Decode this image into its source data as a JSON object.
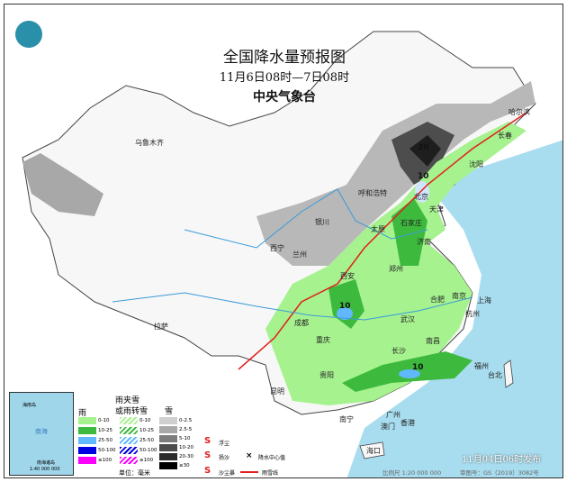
{
  "title": "全国降水量预报图",
  "period": "11月6日08时—7日08时",
  "issuer": "中央气象台",
  "issue_time": "11月04日06时发布",
  "scale": "比例尺 1:20 000 000",
  "map_number": "审图号：GS（2019）3082号",
  "inset": {
    "label": "南海诸岛",
    "scale": "1:40 000 000",
    "sea": "南海",
    "island": "海南岛"
  },
  "cities": [
    "乌鲁木齐",
    "哈尔滨",
    "长春",
    "沈阳",
    "呼和浩特",
    "北京",
    "天津",
    "石家庄",
    "太原",
    "银川",
    "西宁",
    "兰州",
    "济南",
    "郑州",
    "西安",
    "南京",
    "上海",
    "合肥",
    "杭州",
    "武汉",
    "成都",
    "重庆",
    "长沙",
    "南昌",
    "福州",
    "台北",
    "贵阳",
    "昆明",
    "拉萨",
    "南宁",
    "广州",
    "香港",
    "澳门",
    "海口"
  ],
  "centers": [
    "20",
    "10",
    "10",
    "10"
  ],
  "legend": {
    "rain": {
      "title": "雨",
      "items": [
        {
          "label": "0-10",
          "color": "#a6f28f"
        },
        {
          "label": "10-25",
          "color": "#3dba3d"
        },
        {
          "label": "25-50",
          "color": "#61b8ff"
        },
        {
          "label": "50-100",
          "color": "#0000e1"
        },
        {
          "label": "≥100",
          "color": "#fa00fa"
        }
      ]
    },
    "mixed": {
      "title1": "雨夹雪",
      "title2": "或雨转雪",
      "items": [
        {
          "label": "0-10",
          "color": "#a6f28f"
        },
        {
          "label": "10-25",
          "color": "#3dba3d"
        },
        {
          "label": "25-50",
          "color": "#61b8ff"
        },
        {
          "label": "50-100",
          "color": "#0000e1"
        },
        {
          "label": "≥100",
          "color": "#fa00fa"
        }
      ]
    },
    "snow": {
      "title": "雪",
      "items": [
        {
          "label": "0-2.5",
          "color": "#cfcfcf"
        },
        {
          "label": "2.5-5",
          "color": "#a8a8a8"
        },
        {
          "label": "5-10",
          "color": "#7c7c7c"
        },
        {
          "label": "10-20",
          "color": "#4d4d4d"
        },
        {
          "label": "20-30",
          "color": "#2a2a2a"
        },
        {
          "label": "≥30",
          "color": "#000000"
        }
      ]
    },
    "symbols": [
      {
        "glyph": "S",
        "label": "浮尘"
      },
      {
        "glyph": "S",
        "label": "扬沙"
      },
      {
        "glyph": "S",
        "label": "沙尘暴"
      },
      {
        "glyph": "×",
        "label": "降水中心值"
      },
      {
        "glyph": "",
        "label": "雨雪线"
      }
    ],
    "unit": "单位：毫米"
  }
}
